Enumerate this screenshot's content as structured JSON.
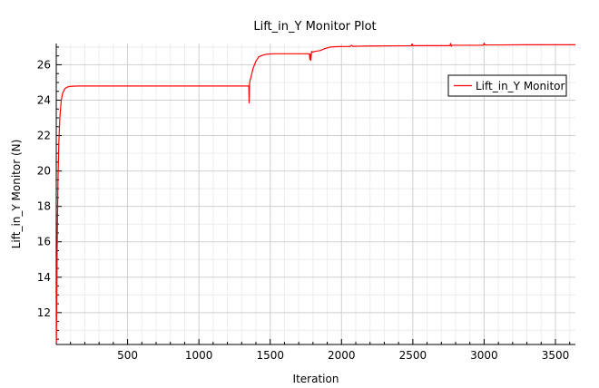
{
  "chart_data": {
    "type": "line",
    "title": "Lift_in_Y Monitor Plot",
    "xlabel": "Iteration",
    "ylabel": "Lift_in_Y Monitor (N)",
    "xlim": [
      0,
      3640
    ],
    "ylim": [
      10.2,
      27.2
    ],
    "x_ticks": [
      500,
      1000,
      1500,
      2000,
      2500,
      3000,
      3500
    ],
    "y_ticks": [
      12,
      14,
      16,
      18,
      20,
      22,
      24,
      26
    ],
    "grid": true,
    "legend": {
      "position": "top-right",
      "entries": [
        "Lift_in_Y Monitor"
      ]
    },
    "series": [
      {
        "name": "Lift_in_Y Monitor",
        "color": "#ff0000",
        "x": [
          1,
          6,
          12,
          18,
          25,
          35,
          45,
          60,
          80,
          100,
          150,
          300,
          600,
          1000,
          1345,
          1350,
          1352,
          1355,
          1358,
          1365,
          1380,
          1400,
          1420,
          1450,
          1480,
          1520,
          1600,
          1700,
          1775,
          1778,
          1781,
          1784,
          1790,
          1800,
          1805,
          1810,
          1850,
          1880,
          1920,
          1960,
          2000,
          2060,
          2070,
          2080,
          2120,
          2200,
          2400,
          2490,
          2495,
          2500,
          2505,
          2510,
          2600,
          2760,
          2765,
          2770,
          2775,
          2780,
          2800,
          2900,
          2990,
          2995,
          3000,
          3005,
          3010,
          3100,
          3300,
          3500,
          3640
        ],
        "y": [
          10.3,
          15.5,
          19.5,
          21.6,
          23.0,
          24.0,
          24.4,
          24.65,
          24.75,
          24.78,
          24.8,
          24.8,
          24.8,
          24.8,
          24.8,
          24.8,
          23.85,
          24.9,
          25.1,
          25.3,
          25.8,
          26.2,
          26.45,
          26.55,
          26.6,
          26.62,
          26.62,
          26.62,
          26.62,
          26.3,
          26.6,
          26.25,
          26.75,
          26.7,
          26.75,
          26.75,
          26.8,
          26.9,
          27.0,
          27.02,
          27.03,
          27.03,
          27.1,
          27.04,
          27.05,
          27.06,
          27.07,
          27.07,
          27.18,
          27.08,
          27.07,
          27.08,
          27.08,
          27.08,
          27.2,
          27.05,
          27.1,
          27.1,
          27.1,
          27.1,
          27.1,
          27.12,
          27.22,
          27.12,
          27.12,
          27.12,
          27.13,
          27.13,
          27.13
        ]
      }
    ]
  }
}
